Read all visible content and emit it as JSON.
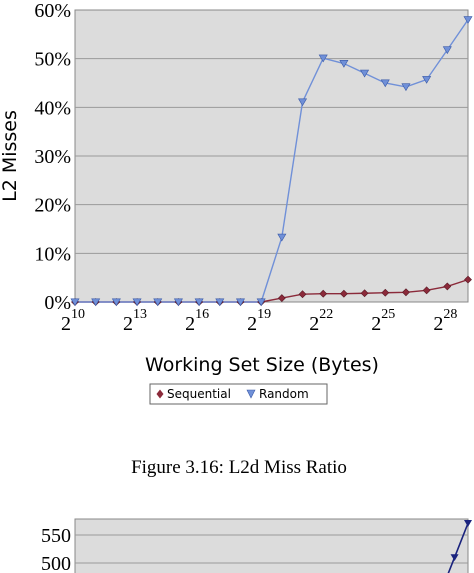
{
  "caption": "Figure 3.16: L2d Miss Ratio",
  "chart_data": [
    {
      "type": "line",
      "ylabel": "L2 Misses",
      "xlabel": "Working Set Size (Bytes)",
      "x": [
        10,
        11,
        12,
        13,
        14,
        15,
        16,
        17,
        18,
        19,
        20,
        21,
        22,
        23,
        24,
        25,
        26,
        27,
        28,
        29
      ],
      "xticks": [
        {
          "base": "2",
          "exp": "10",
          "x": 10
        },
        {
          "base": "2",
          "exp": "13",
          "x": 13
        },
        {
          "base": "2",
          "exp": "16",
          "x": 16
        },
        {
          "base": "2",
          "exp": "19",
          "x": 19
        },
        {
          "base": "2",
          "exp": "22",
          "x": 22
        },
        {
          "base": "2",
          "exp": "25",
          "x": 25
        },
        {
          "base": "2",
          "exp": "28",
          "x": 28
        }
      ],
      "yticks": [
        "0%",
        "10%",
        "20%",
        "30%",
        "40%",
        "50%",
        "60%"
      ],
      "ytick_values": [
        0,
        10,
        20,
        30,
        40,
        50,
        60
      ],
      "ylim": [
        0,
        60
      ],
      "xlim": [
        10,
        29
      ],
      "grid": true,
      "legend_position": "bottom-center",
      "series": [
        {
          "name": "Sequential",
          "color": "#8b2a3a",
          "marker": "diamond",
          "values": [
            0,
            0,
            0,
            0,
            0,
            0,
            0,
            0,
            0,
            0,
            0.8,
            1.6,
            1.7,
            1.7,
            1.8,
            1.9,
            2.0,
            2.4,
            3.2,
            4.6
          ]
        },
        {
          "name": "Random",
          "color": "#7090d8",
          "marker": "triangle-down",
          "values": [
            0,
            0,
            0,
            0,
            0,
            0,
            0,
            0,
            0,
            0,
            13.3,
            41.1,
            50.1,
            49.0,
            47.0,
            45.0,
            44.2,
            45.7,
            51.8,
            58.0
          ]
        }
      ]
    },
    {
      "type": "line",
      "yticks": [
        "550",
        "500"
      ],
      "ytick_values": [
        550,
        500
      ],
      "grid": true,
      "series": [
        {
          "color": "#1a237e",
          "marker": "triangle-down",
          "x": [
            28.35,
            29
          ],
          "values": [
            510,
            571
          ]
        }
      ]
    }
  ]
}
